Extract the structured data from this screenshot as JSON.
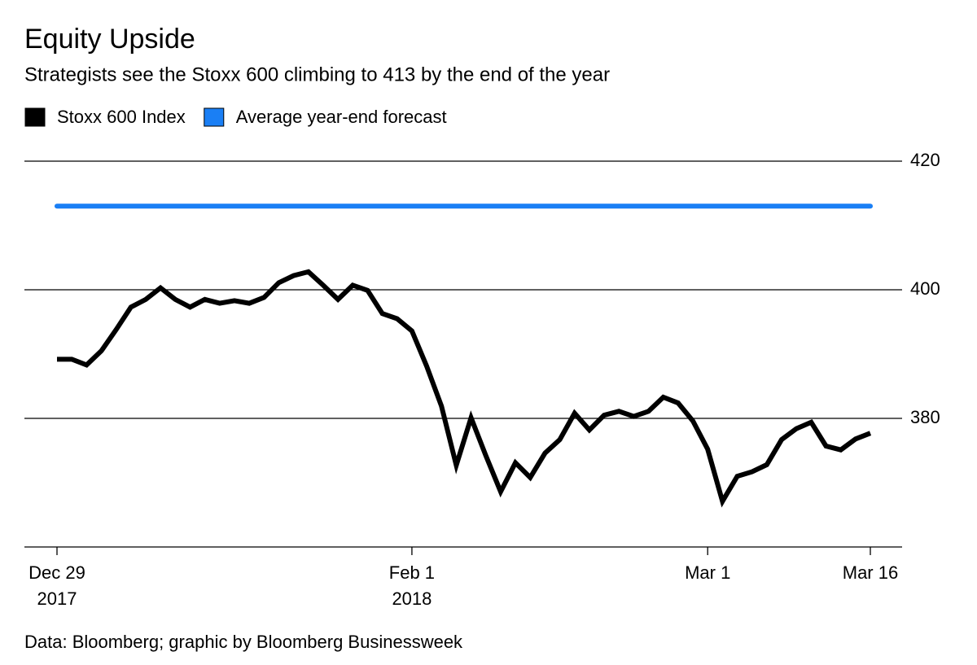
{
  "chart_data": {
    "type": "line",
    "title": "Equity Upside",
    "subtitle": "Strategists see the Stoxx 600 climbing to 413 by the end of the year",
    "source": "Data: Bloomberg; graphic by Bloomberg Businessweek",
    "x": [
      "2017-12-29",
      "2018-01-01",
      "2018-01-02",
      "2018-01-03",
      "2018-01-04",
      "2018-01-05",
      "2018-01-08",
      "2018-01-09",
      "2018-01-10",
      "2018-01-11",
      "2018-01-12",
      "2018-01-15",
      "2018-01-16",
      "2018-01-17",
      "2018-01-18",
      "2018-01-19",
      "2018-01-22",
      "2018-01-23",
      "2018-01-24",
      "2018-01-25",
      "2018-01-26",
      "2018-01-29",
      "2018-01-30",
      "2018-01-31",
      "2018-02-01",
      "2018-02-02",
      "2018-02-05",
      "2018-02-06",
      "2018-02-07",
      "2018-02-08",
      "2018-02-09",
      "2018-02-12",
      "2018-02-13",
      "2018-02-14",
      "2018-02-15",
      "2018-02-16",
      "2018-02-19",
      "2018-02-20",
      "2018-02-21",
      "2018-02-22",
      "2018-02-23",
      "2018-02-26",
      "2018-02-27",
      "2018-02-28",
      "2018-03-01",
      "2018-03-02",
      "2018-03-05",
      "2018-03-06",
      "2018-03-07",
      "2018-03-08",
      "2018-03-09",
      "2018-03-12",
      "2018-03-13",
      "2018-03-14",
      "2018-03-15",
      "2018-03-16"
    ],
    "series": [
      {
        "name": "Stoxx 600 Index",
        "color": "#000000",
        "values": [
          389.2,
          389.2,
          388.3,
          390.5,
          393.8,
          397.3,
          398.5,
          400.3,
          398.5,
          397.3,
          398.5,
          397.9,
          398.3,
          397.9,
          398.8,
          401.1,
          402.2,
          402.8,
          400.7,
          398.5,
          400.7,
          399.9,
          396.3,
          395.5,
          393.6,
          388.1,
          381.9,
          372.7,
          380.1,
          374.2,
          368.6,
          373.1,
          370.8,
          374.6,
          376.7,
          380.8,
          378.2,
          380.5,
          381.1,
          380.3,
          381.1,
          383.3,
          382.4,
          379.6,
          375.2,
          367.1,
          371.0,
          371.7,
          372.8,
          376.7,
          378.4,
          379.4,
          375.7,
          375.1,
          376.8,
          377.7
        ]
      }
    ],
    "reference_line": {
      "name": "Average year-end forecast",
      "color": "#1a7ff5",
      "value": 413
    },
    "ylim": [
      360,
      420
    ],
    "yticks": [
      380,
      400,
      420
    ],
    "xticks": [
      {
        "value": "2017-12-29",
        "label": "Dec 29\n2017"
      },
      {
        "value": "2018-02-01",
        "label": "Feb 1\n2018"
      },
      {
        "value": "2018-03-01",
        "label": "Mar 1"
      },
      {
        "value": "2018-03-16",
        "label": "Mar 16"
      }
    ],
    "grid": true
  }
}
